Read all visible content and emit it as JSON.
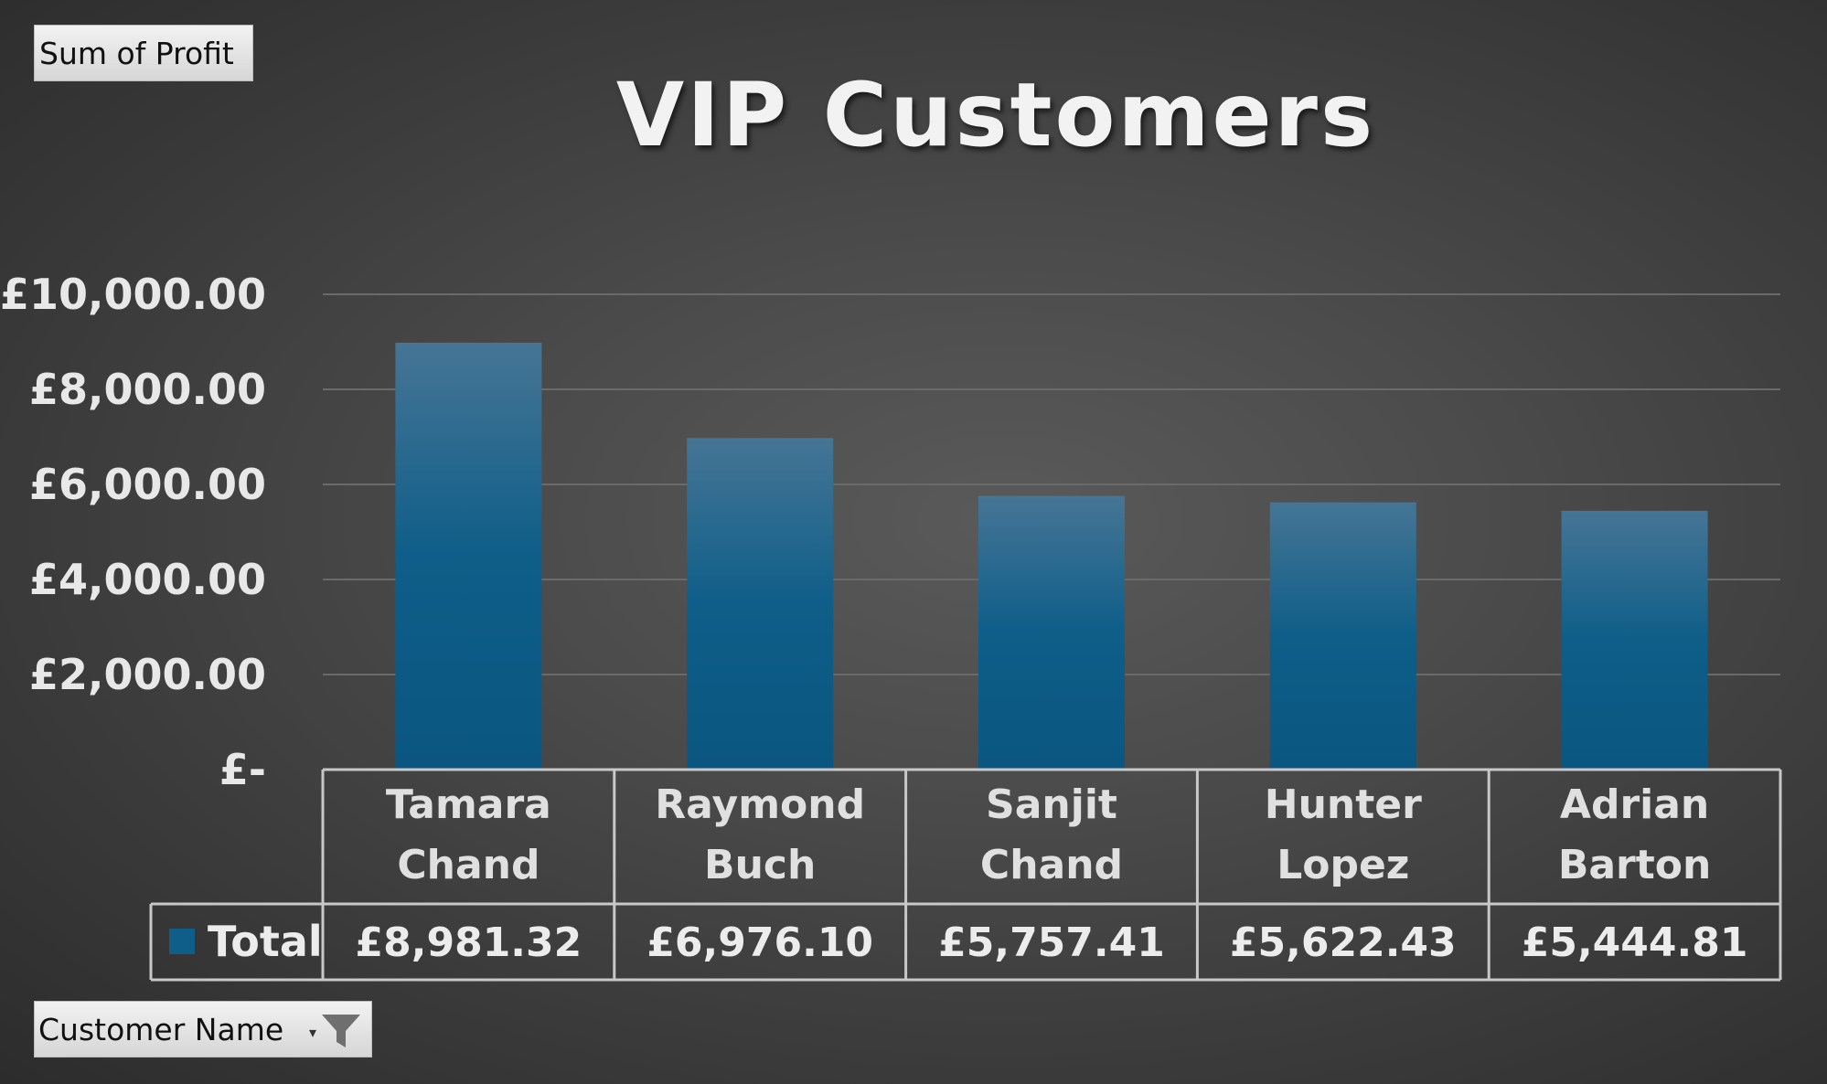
{
  "pivot": {
    "value_field": "Sum of Profit",
    "axis_field": "Customer Name",
    "filter_icon": "filter-funnel-icon",
    "dropdown_icon": "chevron-down-icon"
  },
  "chart_data": {
    "type": "bar",
    "title": "VIP Customers",
    "categories": [
      [
        "Tamara",
        "Chand"
      ],
      [
        "Raymond",
        "Buch"
      ],
      [
        "Sanjit",
        "Chand"
      ],
      [
        "Hunter",
        "Lopez"
      ],
      [
        "Adrian",
        "Barton"
      ]
    ],
    "series": [
      {
        "name": "Total",
        "values": [
          8981.32,
          6976.1,
          5757.41,
          5622.43,
          5444.81
        ],
        "value_labels": [
          "£8,981.32",
          "£6,976.10",
          "£5,757.41",
          "£5,622.43",
          "£5,444.81"
        ]
      }
    ],
    "ylim": [
      0,
      10000
    ],
    "y_ticks": [
      0,
      2000,
      4000,
      6000,
      8000,
      10000
    ],
    "y_tick_labels": [
      "£-",
      "£2,000.00",
      "£4,000.00",
      "£6,000.00",
      "£8,000.00",
      "£10,000.00"
    ],
    "grid": true,
    "data_table": true,
    "colors": {
      "bar_top": "#467595",
      "bar_bottom": "#0a5680",
      "legend_key": "#0f5e8a",
      "grid": "#6a6a6a",
      "table_border": "#c8c8c8"
    }
  }
}
